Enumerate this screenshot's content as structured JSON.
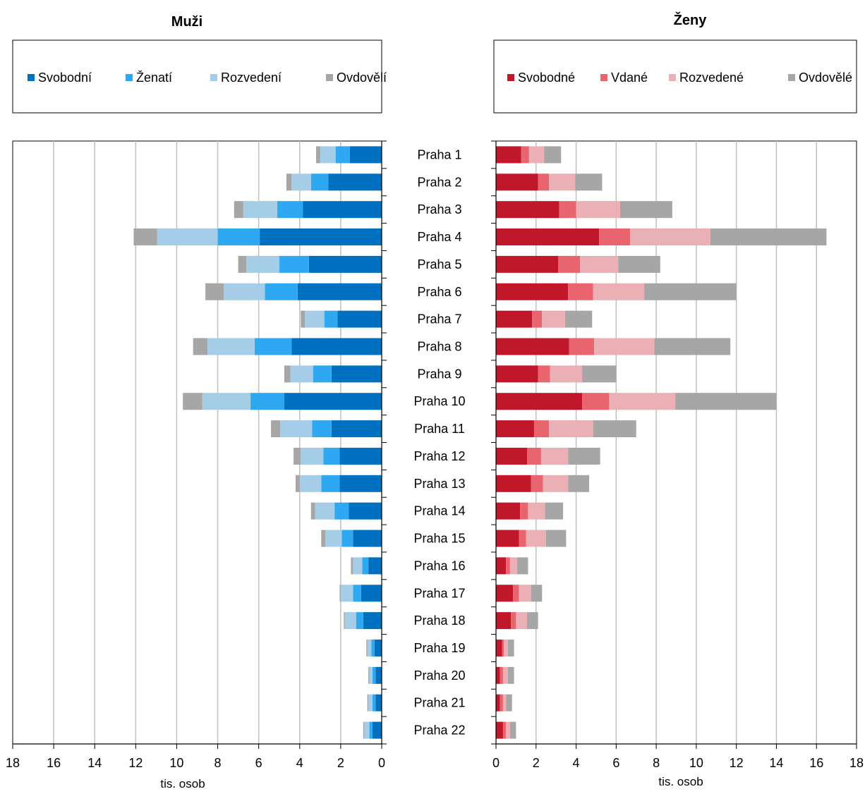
{
  "chart_data": [
    {
      "type": "bar",
      "orientation": "horizontal",
      "stacked": true,
      "direction": "reversed",
      "title": "Muži",
      "xlabel": "tis. osob",
      "xlim": [
        0,
        18
      ],
      "xticks": [
        18,
        16,
        14,
        12,
        10,
        8,
        6,
        4,
        2,
        0
      ],
      "grid": true,
      "legend": "top",
      "categories": [
        "Praha 1",
        "Praha 2",
        "Praha 3",
        "Praha 4",
        "Praha 5",
        "Praha 6",
        "Praha 7",
        "Praha 8",
        "Praha 9",
        "Praha 10",
        "Praha 11",
        "Praha 12",
        "Praha 13",
        "Praha 14",
        "Praha 15",
        "Praha 16",
        "Praha 17",
        "Praha 18",
        "Praha 19",
        "Praha 20",
        "Praha 21",
        "Praha 22"
      ],
      "series": [
        {
          "name": "Svobodní",
          "color": "#0070c0",
          "values": [
            1.55,
            2.6,
            3.85,
            5.95,
            3.55,
            4.1,
            2.15,
            4.4,
            2.45,
            4.75,
            2.45,
            2.05,
            2.05,
            1.6,
            1.4,
            0.65,
            1.0,
            0.9,
            0.35,
            0.3,
            0.3,
            0.45
          ]
        },
        {
          "name": "Ženatí",
          "color": "#2ea8f0",
          "values": [
            0.7,
            0.85,
            1.25,
            2.05,
            1.45,
            1.6,
            0.65,
            1.8,
            0.9,
            1.65,
            0.95,
            0.8,
            0.9,
            0.7,
            0.55,
            0.3,
            0.4,
            0.35,
            0.15,
            0.15,
            0.15,
            0.15
          ]
        },
        {
          "name": "Rozvedení",
          "color": "#a6cde8",
          "values": [
            0.75,
            0.95,
            1.65,
            2.95,
            1.6,
            2.0,
            0.95,
            2.3,
            1.1,
            2.35,
            1.55,
            1.1,
            1.05,
            0.95,
            0.8,
            0.45,
            0.6,
            0.55,
            0.2,
            0.15,
            0.2,
            0.25
          ]
        },
        {
          "name": "Ovdovělí",
          "color": "#a6a6a6",
          "values": [
            0.2,
            0.25,
            0.45,
            1.15,
            0.4,
            0.9,
            0.2,
            0.7,
            0.3,
            0.95,
            0.45,
            0.35,
            0.2,
            0.2,
            0.2,
            0.1,
            0.05,
            0.05,
            0.05,
            0.05,
            0.05,
            0.05
          ]
        }
      ]
    },
    {
      "type": "bar",
      "orientation": "horizontal",
      "stacked": true,
      "title": "Ženy",
      "xlabel": "tis. osob",
      "xlim": [
        0,
        18
      ],
      "xticks": [
        0,
        2,
        4,
        6,
        8,
        10,
        12,
        14,
        16,
        18
      ],
      "grid": true,
      "legend": "top",
      "categories": [
        "Praha 1",
        "Praha 2",
        "Praha 3",
        "Praha 4",
        "Praha 5",
        "Praha 6",
        "Praha 7",
        "Praha 8",
        "Praha 9",
        "Praha 10",
        "Praha 11",
        "Praha 12",
        "Praha 13",
        "Praha 14",
        "Praha 15",
        "Praha 16",
        "Praha 17",
        "Praha 18",
        "Praha 19",
        "Praha 20",
        "Praha 21",
        "Praha 22"
      ],
      "series": [
        {
          "name": "Svobodné",
          "color": "#c0182a",
          "values": [
            1.25,
            2.1,
            3.15,
            5.15,
            3.1,
            3.6,
            1.8,
            3.65,
            2.1,
            4.3,
            1.9,
            1.55,
            1.75,
            1.2,
            1.15,
            0.5,
            0.85,
            0.75,
            0.3,
            0.2,
            0.2,
            0.35
          ]
        },
        {
          "name": "Vdané",
          "color": "#e8646e",
          "values": [
            0.4,
            0.55,
            0.85,
            1.55,
            1.1,
            1.25,
            0.5,
            1.25,
            0.6,
            1.35,
            0.75,
            0.7,
            0.6,
            0.4,
            0.35,
            0.2,
            0.3,
            0.25,
            0.1,
            0.15,
            0.15,
            0.15
          ]
        },
        {
          "name": "Rozvedené",
          "color": "#eab0b5",
          "values": [
            0.75,
            1.3,
            2.2,
            4.0,
            1.9,
            2.55,
            1.15,
            3.0,
            1.6,
            3.3,
            2.2,
            1.35,
            1.25,
            0.85,
            1.0,
            0.35,
            0.6,
            0.55,
            0.2,
            0.25,
            0.15,
            0.2
          ]
        },
        {
          "name": "Ovdovělé",
          "color": "#a6a6a6",
          "values": [
            0.85,
            1.35,
            2.6,
            5.8,
            2.1,
            4.6,
            1.35,
            3.8,
            1.7,
            5.05,
            2.15,
            1.6,
            1.05,
            0.9,
            1.0,
            0.55,
            0.55,
            0.55,
            0.3,
            0.3,
            0.3,
            0.3
          ]
        }
      ]
    }
  ]
}
